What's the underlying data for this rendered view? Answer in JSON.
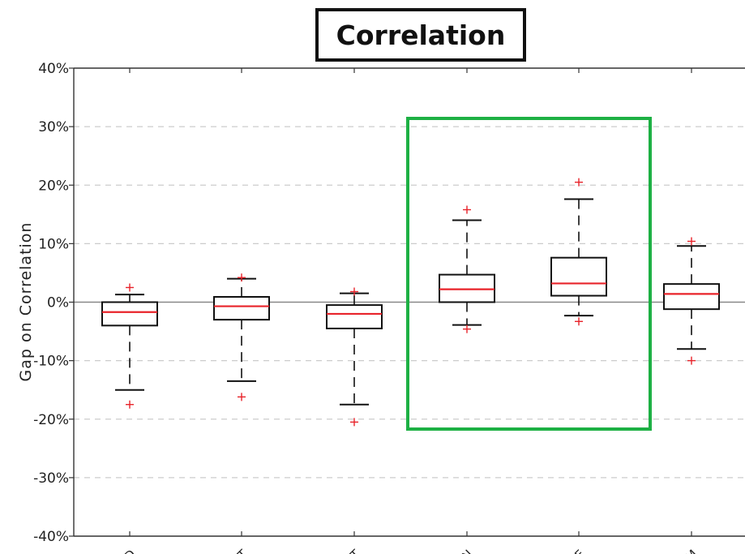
{
  "chart_data": {
    "type": "box",
    "title": "Correlation",
    "xlabel": "",
    "ylabel": "Gap on Correlation",
    "ylim": [
      -40,
      40
    ],
    "y_ticks": [
      "-40%",
      "-30%",
      "-20%",
      "-10%",
      "0%",
      "10%",
      "20%",
      "30%",
      "40%"
    ],
    "y_tick_values": [
      -40,
      -30,
      -20,
      -10,
      0,
      10,
      20,
      30,
      40
    ],
    "grid": "horizontal-dashed",
    "categories": [
      "D",
      "T",
      "T",
      "N",
      "E",
      "M"
    ],
    "boxes": [
      {
        "whisker_low": -15,
        "q1": -4,
        "median": -1.7,
        "q3": 0,
        "whisker_high": 1.3,
        "outliers": [
          2.5,
          -17.5
        ]
      },
      {
        "whisker_low": -13.5,
        "q1": -3,
        "median": -0.7,
        "q3": 0.9,
        "whisker_high": 4,
        "outliers": [
          4.2,
          -16.2
        ]
      },
      {
        "whisker_low": -17.5,
        "q1": -4.5,
        "median": -2,
        "q3": -0.5,
        "whisker_high": 1.5,
        "outliers": [
          1.8,
          -20.5
        ]
      },
      {
        "whisker_low": -3.9,
        "q1": 0,
        "median": 2.2,
        "q3": 4.7,
        "whisker_high": 14,
        "outliers": [
          15.8,
          -4.6
        ]
      },
      {
        "whisker_low": -2.3,
        "q1": 1.1,
        "median": 3.2,
        "q3": 7.6,
        "whisker_high": 17.6,
        "outliers": [
          20.5,
          -3.3
        ]
      },
      {
        "whisker_low": -8,
        "q1": -1.2,
        "median": 1.4,
        "q3": 3.1,
        "whisker_high": 9.6,
        "outliers": [
          10.4,
          -10
        ]
      }
    ],
    "highlight": {
      "color": "#1db044",
      "boxes": [
        3,
        4
      ]
    },
    "colors": {
      "median": "#e8232a",
      "outlier": "#e8232a",
      "box": "#111111",
      "grid": "#cccccc",
      "zero_line": "#888888"
    }
  }
}
